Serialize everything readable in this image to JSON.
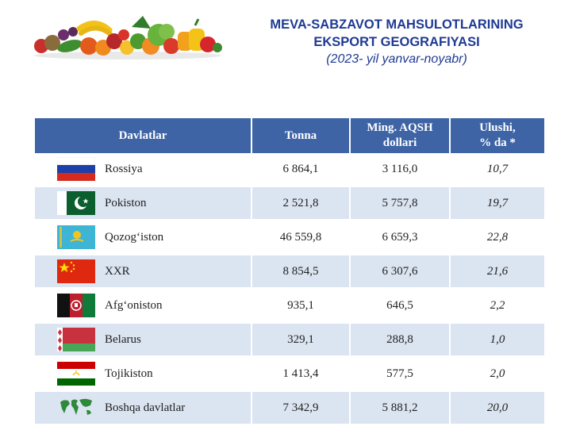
{
  "title_line1": "MEVA-SABZAVOT MAHSULOTLARINING",
  "title_line2": "EKSPORT GEOGRAFIYASI",
  "subtitle": "(2023- yil yanvar-noyabr)",
  "table": {
    "headers": {
      "country": "Davlatlar",
      "tonnes": "Tonna",
      "usd_line1": "Ming. AQSH",
      "usd_line2": "dollari",
      "share_line1": "Ulushi,",
      "share_line2": "% da *"
    },
    "rows": [
      {
        "flag": "russia-flag-icon",
        "country": "Rossiya",
        "tonnes": "6 864,1",
        "usd": "3 116,0",
        "share": "10,7"
      },
      {
        "flag": "pakistan-flag-icon",
        "country": "Pokiston",
        "tonnes": "2 521,8",
        "usd": "5 757,8",
        "share": "19,7"
      },
      {
        "flag": "kazakhstan-flag-icon",
        "country": "Qozog‘iston",
        "tonnes": "46 559,8",
        "usd": "6 659,3",
        "share": "22,8"
      },
      {
        "flag": "china-flag-icon",
        "country": "XXR",
        "tonnes": "8 854,5",
        "usd": "6 307,6",
        "share": "21,6"
      },
      {
        "flag": "afghanistan-flag-icon",
        "country": "Afg‘oniston",
        "tonnes": "935,1",
        "usd": "646,5",
        "share": "2,2"
      },
      {
        "flag": "belarus-flag-icon",
        "country": "Belarus",
        "tonnes": "329,1",
        "usd": "288,8",
        "share": "1,0"
      },
      {
        "flag": "tajikistan-flag-icon",
        "country": "Tojikiston",
        "tonnes": "1 413,4",
        "usd": "577,5",
        "share": "2,0"
      },
      {
        "flag": "world-map-icon",
        "country": "Boshqa davlatlar",
        "tonnes": "7 342,9",
        "usd": "5 881,2",
        "share": "20,0"
      }
    ]
  },
  "colors": {
    "title": "#1f3a93",
    "header_bg": "#3e64a6",
    "row_alt_bg": "#dbe4f1"
  }
}
